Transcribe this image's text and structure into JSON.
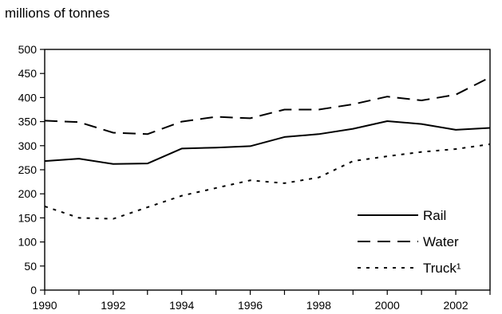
{
  "chart_data": {
    "type": "line",
    "unit_label": "millions of tonnes",
    "x": [
      1990,
      1991,
      1992,
      1993,
      1994,
      1995,
      1996,
      1997,
      1998,
      1999,
      2000,
      2001,
      2002,
      2003
    ],
    "xticks": [
      "1990",
      "1992",
      "1994",
      "1996",
      "1998",
      "2000",
      "2002"
    ],
    "yticks": [
      "0",
      "50",
      "100",
      "150",
      "200",
      "250",
      "300",
      "350",
      "400",
      "450",
      "500"
    ],
    "ylim": [
      0,
      500
    ],
    "xlim": [
      1990,
      2003
    ],
    "grid": false,
    "legend_position": "bottom-right",
    "series": [
      {
        "name": "Rail",
        "style": "solid",
        "values": [
          268,
          273,
          262,
          263,
          294,
          296,
          299,
          318,
          324,
          335,
          351,
          345,
          333,
          337
        ]
      },
      {
        "name": "Water",
        "style": "dashed",
        "values": [
          352,
          349,
          327,
          324,
          350,
          360,
          357,
          375,
          375,
          386,
          402,
          394,
          406,
          442
        ]
      },
      {
        "name": "Truck¹",
        "style": "dotted",
        "values": [
          174,
          150,
          148,
          172,
          196,
          212,
          228,
          222,
          234,
          268,
          278,
          287,
          293,
          303
        ]
      }
    ]
  }
}
